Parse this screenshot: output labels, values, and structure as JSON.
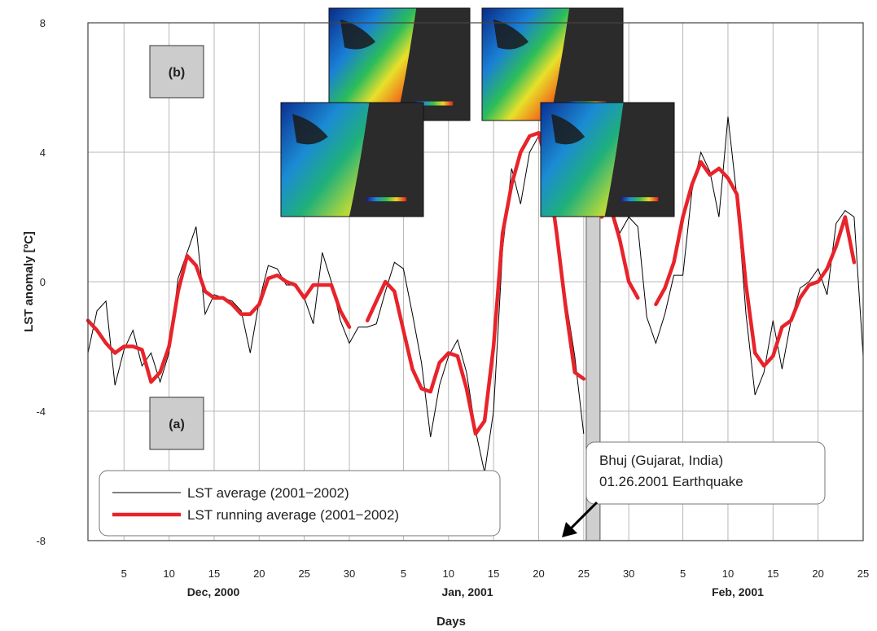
{
  "chart_data": {
    "type": "line",
    "ylabel": "LST anomaly [ºC]",
    "xlabel": "Days",
    "ylim": [
      -8,
      8
    ],
    "y_ticks": [
      -8,
      -4,
      0,
      4,
      8
    ],
    "grid": true,
    "x_tick_labels": [
      "5",
      "10",
      "15",
      "20",
      "25",
      "30",
      "5",
      "10",
      "15",
      "20",
      "25",
      "30",
      "5",
      "10",
      "15",
      "20",
      "25"
    ],
    "month_labels": [
      "Dec, 2000",
      "Jan, 2001",
      "Feb, 2001"
    ],
    "legend": {
      "position": "bottom-left",
      "average_label": "LST average (2001−2002)",
      "running_label": "LST running average (2001−2002)"
    },
    "annotation": {
      "line1": "Bhuj (Gujarat, India)",
      "line2": "01.26.2001 Earthquake",
      "date": "2001-01-26"
    },
    "panel_labels": {
      "a": "(a)",
      "b": "(b)"
    },
    "series": [
      {
        "name": "LST average (2001−2002)",
        "color": "#000000",
        "points": [
          [
            "2000-12-01",
            -2.2
          ],
          [
            "2000-12-02",
            -0.9
          ],
          [
            "2000-12-03",
            -0.6
          ],
          [
            "2000-12-04",
            -3.2
          ],
          [
            "2000-12-05",
            -2.1
          ],
          [
            "2000-12-06",
            -1.5
          ],
          [
            "2000-12-07",
            -2.6
          ],
          [
            "2000-12-08",
            -2.2
          ],
          [
            "2000-12-09",
            -3.1
          ],
          [
            "2000-12-10",
            -2.2
          ],
          [
            "2000-12-11",
            0.1
          ],
          [
            "2000-12-12",
            0.9
          ],
          [
            "2000-12-13",
            1.7
          ],
          [
            "2000-12-14",
            -1.0
          ],
          [
            "2000-12-15",
            -0.4
          ],
          [
            "2000-12-16",
            -0.5
          ],
          [
            "2000-12-17",
            -0.6
          ],
          [
            "2000-12-18",
            -0.9
          ],
          [
            "2000-12-19",
            -2.2
          ],
          [
            "2000-12-20",
            -0.6
          ],
          [
            "2000-12-21",
            0.5
          ],
          [
            "2000-12-22",
            0.4
          ],
          [
            "2000-12-23",
            -0.1
          ],
          [
            "2000-12-24",
            -0.1
          ],
          [
            "2000-12-25",
            -0.5
          ],
          [
            "2000-12-26",
            -1.3
          ],
          [
            "2000-12-27",
            0.9
          ],
          [
            "2000-12-28",
            0.0
          ],
          [
            "2000-12-29",
            -1.2
          ],
          [
            "2000-12-30",
            -1.9
          ],
          [
            "2000-12-31",
            -1.4
          ],
          [
            "2001-01-01",
            -1.4
          ],
          [
            "2001-01-02",
            -1.3
          ],
          [
            "2001-01-03",
            -0.3
          ],
          [
            "2001-01-04",
            0.6
          ],
          [
            "2001-01-05",
            0.4
          ],
          [
            "2001-01-06",
            -1.0
          ],
          [
            "2001-01-07",
            -2.5
          ],
          [
            "2001-01-08",
            -4.8
          ],
          [
            "2001-01-09",
            -3.2
          ],
          [
            "2001-01-10",
            -2.3
          ],
          [
            "2001-01-11",
            -1.8
          ],
          [
            "2001-01-12",
            -2.8
          ],
          [
            "2001-01-13",
            -4.6
          ],
          [
            "2001-01-14",
            -5.9
          ],
          [
            "2001-01-15",
            -4.0
          ],
          [
            "2001-01-16",
            1.0
          ],
          [
            "2001-01-17",
            3.5
          ],
          [
            "2001-01-18",
            2.4
          ],
          [
            "2001-01-19",
            4.0
          ],
          [
            "2001-01-20",
            4.5
          ],
          [
            "2001-01-21",
            3.8
          ],
          [
            "2001-01-22",
            1.5
          ],
          [
            "2001-01-23",
            -0.5
          ],
          [
            "2001-01-24",
            -2.3
          ],
          [
            "2001-01-25",
            -4.7
          ],
          [
            "2001-01-27",
            2.2
          ],
          [
            "2001-01-28",
            2.4
          ],
          [
            "2001-01-29",
            1.5
          ],
          [
            "2001-01-30",
            2.0
          ],
          [
            "2001-01-31",
            1.7
          ],
          [
            "2001-02-01",
            -1.1
          ],
          [
            "2001-02-02",
            -1.9
          ],
          [
            "2001-02-03",
            -1.0
          ],
          [
            "2001-02-04",
            0.2
          ],
          [
            "2001-02-05",
            0.2
          ],
          [
            "2001-02-06",
            2.8
          ],
          [
            "2001-02-07",
            4.0
          ],
          [
            "2001-02-08",
            3.4
          ],
          [
            "2001-02-09",
            2.0
          ],
          [
            "2001-02-10",
            5.1
          ],
          [
            "2001-02-11",
            2.6
          ],
          [
            "2001-02-12",
            -1.0
          ],
          [
            "2001-02-13",
            -3.5
          ],
          [
            "2001-02-14",
            -2.8
          ],
          [
            "2001-02-15",
            -1.2
          ],
          [
            "2001-02-16",
            -2.7
          ],
          [
            "2001-02-17",
            -1.2
          ],
          [
            "2001-02-18",
            -0.2
          ],
          [
            "2001-02-19",
            0.0
          ],
          [
            "2001-02-20",
            0.4
          ],
          [
            "2001-02-21",
            -0.4
          ],
          [
            "2001-02-22",
            1.8
          ],
          [
            "2001-02-23",
            2.2
          ],
          [
            "2001-02-24",
            2.0
          ],
          [
            "2001-02-25",
            -2.3
          ]
        ]
      },
      {
        "name": "LST running average (2001−2002)",
        "color": "#e8232a",
        "segments": [
          [
            [
              "2000-12-01",
              -1.2
            ],
            [
              "2000-12-02",
              -1.5
            ],
            [
              "2000-12-03",
              -1.9
            ],
            [
              "2000-12-04",
              -2.2
            ],
            [
              "2000-12-05",
              -2.0
            ],
            [
              "2000-12-06",
              -2.0
            ],
            [
              "2000-12-07",
              -2.1
            ],
            [
              "2000-12-08",
              -3.1
            ],
            [
              "2000-12-09",
              -2.8
            ],
            [
              "2000-12-10",
              -2.0
            ],
            [
              "2000-12-11",
              -0.3
            ],
            [
              "2000-12-12",
              0.8
            ],
            [
              "2000-12-13",
              0.5
            ],
            [
              "2000-12-14",
              -0.3
            ],
            [
              "2000-12-15",
              -0.5
            ],
            [
              "2000-12-16",
              -0.5
            ],
            [
              "2000-12-17",
              -0.7
            ],
            [
              "2000-12-18",
              -1.0
            ],
            [
              "2000-12-19",
              -1.0
            ],
            [
              "2000-12-20",
              -0.7
            ],
            [
              "2000-12-21",
              0.1
            ],
            [
              "2000-12-22",
              0.2
            ],
            [
              "2000-12-23",
              0.0
            ],
            [
              "2000-12-24",
              -0.1
            ],
            [
              "2000-12-25",
              -0.5
            ],
            [
              "2000-12-26",
              -0.1
            ],
            [
              "2000-12-27",
              -0.1
            ],
            [
              "2000-12-28",
              -0.1
            ],
            [
              "2000-12-29",
              -0.9
            ],
            [
              "2000-12-30",
              -1.4
            ]
          ],
          [
            [
              "2001-01-01",
              -1.2
            ],
            [
              "2001-01-02",
              -0.6
            ],
            [
              "2001-01-03",
              0.0
            ],
            [
              "2001-01-04",
              -0.3
            ],
            [
              "2001-01-05",
              -1.5
            ],
            [
              "2001-01-06",
              -2.7
            ],
            [
              "2001-01-07",
              -3.3
            ],
            [
              "2001-01-08",
              -3.4
            ],
            [
              "2001-01-09",
              -2.5
            ],
            [
              "2001-01-10",
              -2.2
            ],
            [
              "2001-01-11",
              -2.3
            ],
            [
              "2001-01-12",
              -3.3
            ],
            [
              "2001-01-13",
              -4.7
            ],
            [
              "2001-01-14",
              -4.3
            ],
            [
              "2001-01-15",
              -2.0
            ],
            [
              "2001-01-16",
              1.5
            ],
            [
              "2001-01-17",
              3.0
            ],
            [
              "2001-01-18",
              4.0
            ],
            [
              "2001-01-19",
              4.5
            ],
            [
              "2001-01-20",
              4.6
            ],
            [
              "2001-01-21",
              3.5
            ],
            [
              "2001-01-22",
              1.5
            ],
            [
              "2001-01-23",
              -0.8
            ],
            [
              "2001-01-24",
              -2.8
            ],
            [
              "2001-01-25",
              -3.0
            ]
          ],
          [
            [
              "2001-01-27",
              2.0
            ],
            [
              "2001-01-28",
              2.3
            ],
            [
              "2001-01-29",
              1.3
            ],
            [
              "2001-01-30",
              0.0
            ],
            [
              "2001-01-31",
              -0.5
            ]
          ],
          [
            [
              "2001-02-02",
              -0.7
            ],
            [
              "2001-02-03",
              -0.2
            ],
            [
              "2001-02-04",
              0.6
            ],
            [
              "2001-02-05",
              2.0
            ],
            [
              "2001-02-06",
              3.0
            ],
            [
              "2001-02-07",
              3.7
            ],
            [
              "2001-02-08",
              3.3
            ],
            [
              "2001-02-09",
              3.5
            ],
            [
              "2001-02-10",
              3.2
            ],
            [
              "2001-02-11",
              2.7
            ],
            [
              "2001-02-12",
              -0.1
            ],
            [
              "2001-02-13",
              -2.2
            ],
            [
              "2001-02-14",
              -2.6
            ],
            [
              "2001-02-15",
              -2.3
            ],
            [
              "2001-02-16",
              -1.4
            ],
            [
              "2001-02-17",
              -1.2
            ],
            [
              "2001-02-18",
              -0.5
            ],
            [
              "2001-02-19",
              -0.1
            ],
            [
              "2001-02-20",
              0.0
            ],
            [
              "2001-02-21",
              0.4
            ],
            [
              "2001-02-22",
              1.1
            ],
            [
              "2001-02-23",
              2.0
            ],
            [
              "2001-02-24",
              0.6
            ]
          ]
        ]
      }
    ]
  }
}
